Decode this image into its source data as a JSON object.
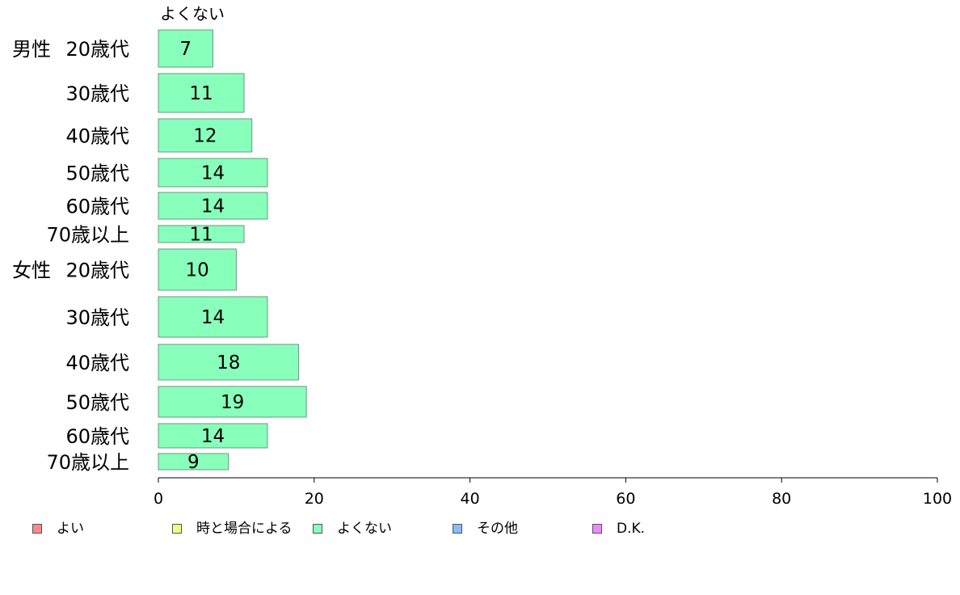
{
  "chart_data": {
    "type": "bar",
    "orientation": "horizontal",
    "series_title": "よくない",
    "groups": [
      "男性",
      "女性"
    ],
    "categories": [
      {
        "group": "男性",
        "label": "20歳代",
        "value": 7
      },
      {
        "group": "",
        "label": "30歳代",
        "value": 11
      },
      {
        "group": "",
        "label": "40歳代",
        "value": 12
      },
      {
        "group": "",
        "label": "50歳代",
        "value": 14
      },
      {
        "group": "",
        "label": "60歳代",
        "value": 14
      },
      {
        "group": "",
        "label": "70歳以上",
        "value": 11
      },
      {
        "group": "女性",
        "label": "20歳代",
        "value": 10
      },
      {
        "group": "",
        "label": "30歳代",
        "value": 14
      },
      {
        "group": "",
        "label": "40歳代",
        "value": 18
      },
      {
        "group": "",
        "label": "50歳代",
        "value": 19
      },
      {
        "group": "",
        "label": "60歳代",
        "value": 14
      },
      {
        "group": "",
        "label": "70歳以上",
        "value": 9
      }
    ],
    "xlim": [
      0,
      100
    ],
    "xticks": [
      0,
      20,
      40,
      60,
      80,
      100
    ],
    "bar_color": "#88ffbb",
    "grid": false,
    "legend_position": "bottom",
    "legend": [
      {
        "label": "よい",
        "color": "#ff8888"
      },
      {
        "label": "時と場合による",
        "color": "#eeff88"
      },
      {
        "label": "よくない",
        "color": "#88ffbb"
      },
      {
        "label": "その他",
        "color": "#88bbff"
      },
      {
        "label": "D.K.",
        "color": "#ee88ff"
      }
    ]
  }
}
